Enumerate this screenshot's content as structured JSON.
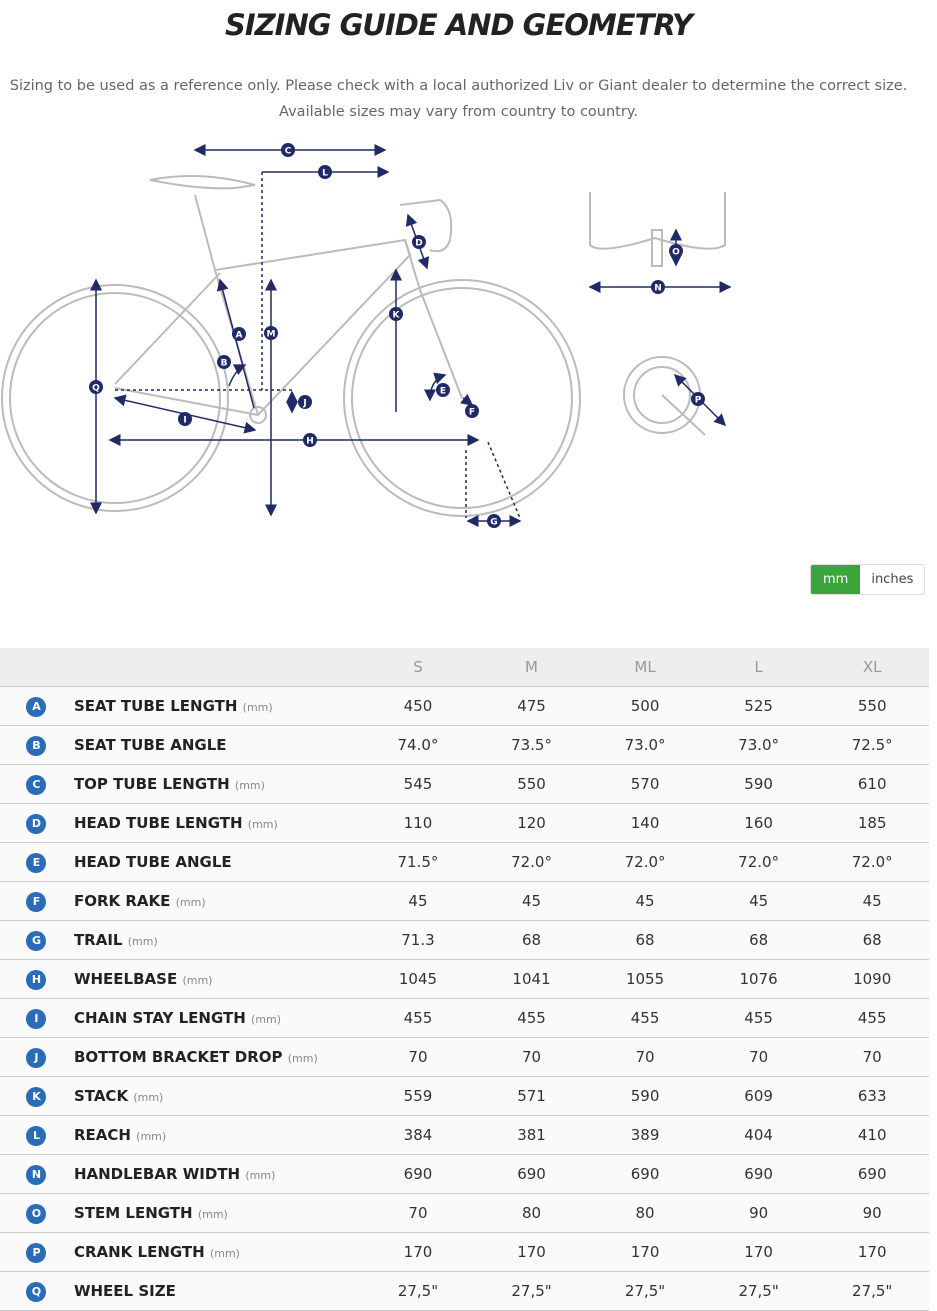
{
  "header": {
    "title": "SIZING GUIDE AND GEOMETRY",
    "lines": [
      "Sizing to be used as a reference only. Please check with a local authorized Liv or Giant dealer to determine the correct size.",
      "Available sizes may vary from country to country."
    ]
  },
  "diagram": {
    "labels": [
      "C",
      "L",
      "D",
      "O",
      "N",
      "K",
      "M",
      "A",
      "B",
      "Q",
      "J",
      "E",
      "F",
      "I",
      "H",
      "P",
      "G"
    ]
  },
  "units_toggle": [
    "mm",
    "inches"
  ],
  "table": {
    "columns": [
      "S",
      "M",
      "ML",
      "L",
      "XL"
    ],
    "rows": [
      {
        "letter": "A",
        "name": "SEAT TUBE LENGTH",
        "unit": "(mm)",
        "values": [
          "450",
          "475",
          "500",
          "525",
          "550"
        ]
      },
      {
        "letter": "B",
        "name": "SEAT TUBE ANGLE",
        "values": [
          "74.0°",
          "73.5°",
          "73.0°",
          "73.0°",
          "72.5°"
        ]
      },
      {
        "letter": "C",
        "name": "TOP TUBE LENGTH",
        "unit": "(mm)",
        "values": [
          "545",
          "550",
          "570",
          "590",
          "610"
        ]
      },
      {
        "letter": "D",
        "name": "HEAD TUBE LENGTH",
        "unit": "(mm)",
        "values": [
          "110",
          "120",
          "140",
          "160",
          "185"
        ]
      },
      {
        "letter": "E",
        "name": "HEAD TUBE ANGLE",
        "values": [
          "71.5°",
          "72.0°",
          "72.0°",
          "72.0°",
          "72.0°"
        ]
      },
      {
        "letter": "F",
        "name": "FORK RAKE",
        "unit": "(mm)",
        "values": [
          "45",
          "45",
          "45",
          "45",
          "45"
        ]
      },
      {
        "letter": "G",
        "name": "TRAIL",
        "unit": "(mm)",
        "values": [
          "71.3",
          "68",
          "68",
          "68",
          "68"
        ]
      },
      {
        "letter": "H",
        "name": "WHEELBASE",
        "unit": "(mm)",
        "values": [
          "1045",
          "1041",
          "1055",
          "1076",
          "1090"
        ]
      },
      {
        "letter": "I",
        "name": "CHAIN STAY LENGTH",
        "unit": "(mm)",
        "values": [
          "455",
          "455",
          "455",
          "455",
          "455"
        ]
      },
      {
        "letter": "J",
        "name": "BOTTOM BRACKET DROP",
        "unit": "(mm)",
        "values": [
          "70",
          "70",
          "70",
          "70",
          "70"
        ]
      },
      {
        "letter": "K",
        "name": "STACK",
        "unit": "(mm)",
        "values": [
          "559",
          "571",
          "590",
          "609",
          "633"
        ]
      },
      {
        "letter": "L",
        "name": "REACH",
        "unit": "(mm)",
        "values": [
          "384",
          "381",
          "389",
          "404",
          "410"
        ]
      },
      {
        "letter": "N",
        "name": "HANDLEBAR WIDTH",
        "unit": "(mm)",
        "values": [
          "690",
          "690",
          "690",
          "690",
          "690"
        ]
      },
      {
        "letter": "O",
        "name": "STEM LENGTH",
        "unit": "(mm)",
        "values": [
          "70",
          "80",
          "80",
          "90",
          "90"
        ]
      },
      {
        "letter": "P",
        "name": "CRANK LENGTH",
        "unit": "(mm)",
        "values": [
          "170",
          "170",
          "170",
          "170",
          "170"
        ]
      },
      {
        "letter": "Q",
        "name": "WHEEL SIZE",
        "values": [
          "27,5\"",
          "27,5\"",
          "27,5\"",
          "27,5\"",
          "27,5\""
        ]
      }
    ]
  }
}
